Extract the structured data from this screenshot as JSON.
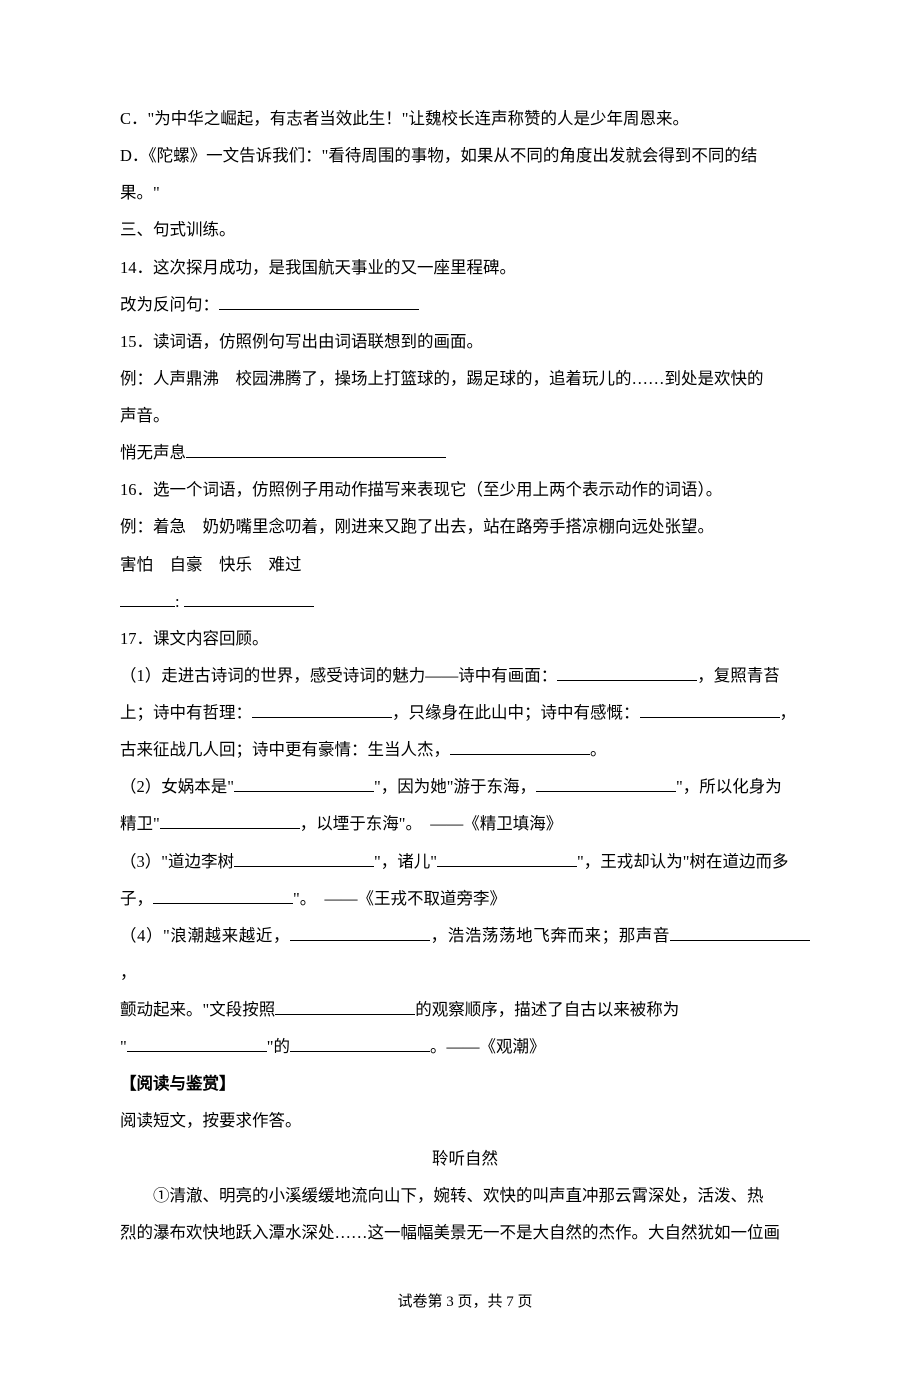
{
  "optionC": "C．\"为中华之崛起，有志者当效此生！\"让魏校长连声称赞的人是少年周恩来。",
  "optionD_line1": "D．《陀螺》一文告诉我们：\"看待周围的事物，如果从不同的角度出发就会得到不同的结",
  "optionD_line2": "果。\"",
  "section3": "三、句式训练。",
  "q14": "14．这次探月成功，是我国航天事业的又一座里程碑。",
  "q14_sub": "改为反问句：",
  "q15": "15．读词语，仿照例句写出由词语联想到的画面。",
  "q15_ex_a": "例：人声鼎沸　校园沸腾了，操场上打篮球的，踢足球的，追着玩儿的……到处是欢快的",
  "q15_ex_b": "声音。",
  "q15_ans_label": "悄无声息",
  "q16": "16．选一个词语，仿照例子用动作描写来表现它（至少用上两个表示动作的词语）。",
  "q16_ex": "例：着急　奶奶嘴里念叨着，刚进来又跑了出去，站在路旁手搭凉棚向远处张望。",
  "q16_words": "害怕　自豪　快乐　难过",
  "q16_colon": ":",
  "q17": "17．课文内容回顾。",
  "q17_1a": "（1）走进古诗词的世界，感受诗词的魅力——诗中有画面：",
  "q17_1b": "，复照青苔",
  "q17_1c": "上；诗中有哲理：",
  "q17_1d": "，只缘身在此山中；诗中有感慨：",
  "q17_1e": "，",
  "q17_1f": "古来征战几人回；诗中更有豪情：生当人杰，",
  "q17_1g": "。",
  "q17_2a": "（2）女娲本是\"",
  "q17_2b": "\"，因为她\"游于东海，",
  "q17_2c": "\"，所以化身为",
  "q17_2d": "精卫\"",
  "q17_2e": "，以堙于东海\"。　——《精卫填海》",
  "q17_3a": "（3）\"道边李树",
  "q17_3b": "\"，诸儿\"",
  "q17_3c": "\"，王戎却认为\"树在道边而多",
  "q17_3d": "子，",
  "q17_3e": "\"。　——《王戎不取道旁李》",
  "q17_4a": "（4）\"浪潮越来越近，",
  "q17_4b": "，浩浩荡荡地飞奔而来；那声音",
  "q17_4c": "，",
  "q17_4d": "颤动起来。\"文段按照",
  "q17_4e": "的观察顺序，描述了自古以来被称为",
  "q17_4f": "\"",
  "q17_4g": "\"的",
  "q17_4h": "。——《观潮》",
  "read_head": "【阅读与鉴赏】",
  "read_instr": "阅读短文，按要求作答。",
  "read_title": "聆听自然",
  "read_p1a": "①清澈、明亮的小溪缓缓地流向山下，婉转、欢快的叫声直冲那云霄深处，活泼、热",
  "read_p1b": "烈的瀑布欢快地跃入潭水深处……这一幅幅美景无一不是大自然的杰作。大自然犹如一位画",
  "footer": "试卷第 3 页，共 7 页"
}
